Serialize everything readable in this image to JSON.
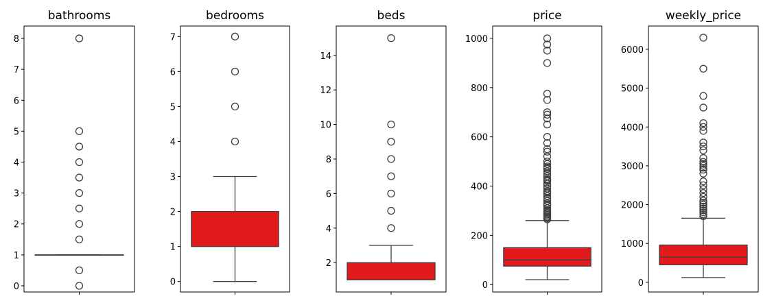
{
  "chart_data": [
    {
      "type": "boxplot",
      "title": "bathrooms",
      "ylim": [
        -0.2,
        8.4
      ],
      "yticks": [
        0,
        1,
        2,
        3,
        4,
        5,
        6,
        7,
        8
      ],
      "box": {
        "whisker_low": 1,
        "q1": 1,
        "median": 1,
        "q3": 1,
        "whisker_high": 1
      },
      "outliers": [
        0,
        0.5,
        1.5,
        2,
        2.5,
        3,
        3.5,
        4,
        4.5,
        5,
        8
      ],
      "color": "#e31a1c"
    },
    {
      "type": "boxplot",
      "title": "bedrooms",
      "ylim": [
        -0.3,
        7.3
      ],
      "yticks": [
        0,
        1,
        2,
        3,
        4,
        5,
        6,
        7
      ],
      "box": {
        "whisker_low": 0,
        "q1": 1,
        "median": 1,
        "q3": 2,
        "whisker_high": 3
      },
      "outliers": [
        4,
        5,
        6,
        7
      ],
      "color": "#e31a1c"
    },
    {
      "type": "boxplot",
      "title": "beds",
      "ylim": [
        0.3,
        15.7
      ],
      "yticks": [
        2,
        4,
        6,
        8,
        10,
        12,
        14
      ],
      "box": {
        "whisker_low": 1,
        "q1": 1,
        "median": 1,
        "q3": 2,
        "whisker_high": 3
      },
      "outliers": [
        4,
        5,
        6,
        7,
        8,
        9,
        10,
        15
      ],
      "color": "#e31a1c"
    },
    {
      "type": "boxplot",
      "title": "price",
      "ylim": [
        -30,
        1050
      ],
      "yticks": [
        0,
        200,
        400,
        600,
        800,
        1000
      ],
      "box": {
        "whisker_low": 20,
        "q1": 75,
        "median": 100,
        "q3": 150,
        "whisker_high": 260
      },
      "outliers": [
        265,
        270,
        275,
        280,
        285,
        290,
        295,
        300,
        310,
        320,
        325,
        330,
        340,
        350,
        360,
        370,
        375,
        380,
        390,
        400,
        410,
        420,
        425,
        430,
        440,
        450,
        460,
        470,
        475,
        480,
        490,
        500,
        520,
        540,
        550,
        575,
        600,
        650,
        675,
        690,
        700,
        750,
        775,
        900,
        950,
        975,
        1000
      ],
      "color": "#e31a1c"
    },
    {
      "type": "boxplot",
      "title": "weekly_price",
      "ylim": [
        -250,
        6600
      ],
      "yticks": [
        0,
        1000,
        2000,
        3000,
        4000,
        5000,
        6000
      ],
      "box": {
        "whisker_low": 120,
        "q1": 450,
        "median": 650,
        "q3": 960,
        "whisker_high": 1650
      },
      "outliers": [
        1700,
        1750,
        1800,
        1850,
        1900,
        1950,
        2000,
        2050,
        2100,
        2200,
        2300,
        2400,
        2500,
        2600,
        2800,
        2900,
        2950,
        3000,
        3050,
        3100,
        3200,
        3400,
        3500,
        3600,
        3900,
        4000,
        4100,
        4500,
        4800,
        5500,
        6300
      ],
      "color": "#e31a1c"
    }
  ]
}
